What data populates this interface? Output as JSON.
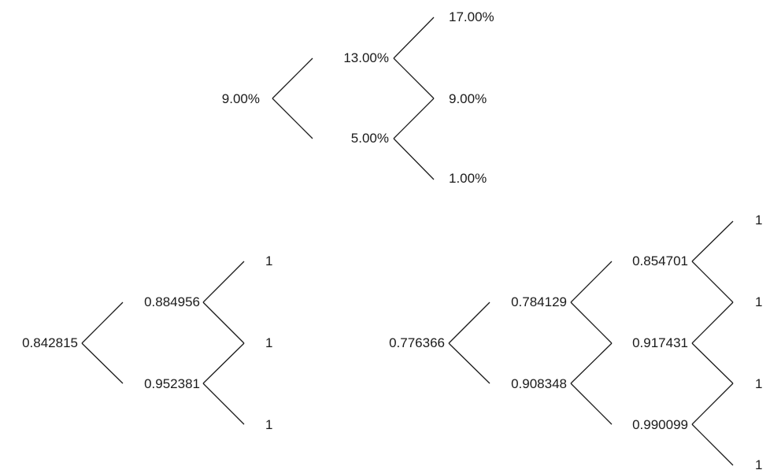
{
  "rate_tree": {
    "root": "9.00%",
    "up": "13.00%",
    "down": "5.00%",
    "uu": "17.00%",
    "ud": "9.00%",
    "dd": "1.00%"
  },
  "price_tree_2": {
    "root": "0.842815",
    "up": "0.884956",
    "down": "0.952381",
    "uu": "1",
    "ud": "1",
    "dd": "1"
  },
  "price_tree_3": {
    "root": "0.776366",
    "up": "0.784129",
    "down": "0.908348",
    "uu": "0.854701",
    "ud": "0.917431",
    "dd": "0.990099",
    "uuu": "1",
    "uud": "1",
    "udd": "1",
    "ddd": "1"
  },
  "colors": {
    "line": "#1a1a1a",
    "text": "#1a1a1a"
  }
}
